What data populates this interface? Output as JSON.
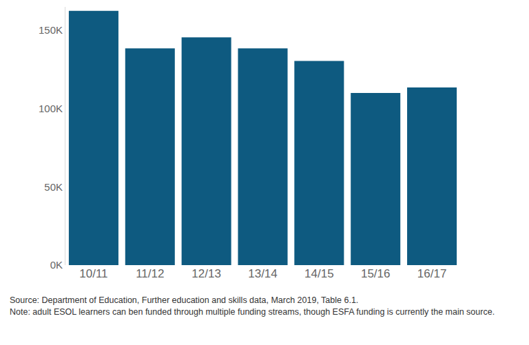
{
  "chart_data": {
    "type": "bar",
    "categories": [
      "10/11",
      "11/12",
      "12/13",
      "13/14",
      "14/15",
      "15/16",
      "16/17"
    ],
    "values": [
      162500,
      138500,
      145500,
      138500,
      130500,
      110000,
      113500
    ],
    "color": "#0e5a80",
    "ylim": [
      0,
      165000
    ],
    "yticks": [
      {
        "value": 0,
        "label": "0K"
      },
      {
        "value": 50000,
        "label": "50K"
      },
      {
        "value": 100000,
        "label": "100K"
      },
      {
        "value": 150000,
        "label": "150K"
      }
    ],
    "grid": false,
    "annotations": [
      "Source: Department of Education, Further education and skills data, March 2019, Table 6.1.",
      "Note: adult ESOL learners can ben funded through multiple funding streams, though ESFA funding is currently the main source."
    ]
  }
}
